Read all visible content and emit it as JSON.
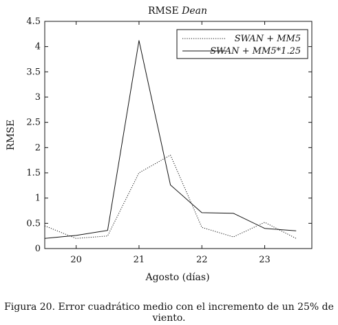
{
  "chart_data": {
    "type": "line",
    "title_prefix": "RMSE",
    "title_italic": "Dean",
    "xlabel": "Agosto (días)",
    "ylabel": "RMSE",
    "xlim": [
      19.5,
      23.75
    ],
    "ylim": [
      0,
      4.5
    ],
    "xticks": [
      20,
      21,
      22,
      23
    ],
    "yticks": [
      0,
      0.5,
      1,
      1.5,
      2,
      2.5,
      3,
      3.5,
      4,
      4.5
    ],
    "ytick_labels": [
      "0",
      "0.5",
      "1",
      "1.5",
      "2",
      "2.5",
      "3",
      "3.5",
      "4",
      "4.5"
    ],
    "legend_position": "top-right",
    "series": [
      {
        "name": "SWAN + MM5",
        "style": "dotted",
        "x": [
          19.5,
          20.0,
          20.5,
          21.0,
          21.5,
          22.0,
          22.5,
          23.0,
          23.5
        ],
        "y": [
          0.45,
          0.2,
          0.25,
          1.5,
          1.85,
          0.42,
          0.23,
          0.52,
          0.2
        ]
      },
      {
        "name": "SWAN + MM5*1.25",
        "style": "solid",
        "x": [
          19.5,
          20.0,
          20.5,
          21.0,
          21.5,
          22.0,
          22.5,
          23.0,
          23.5
        ],
        "y": [
          0.2,
          0.26,
          0.36,
          4.12,
          1.26,
          0.71,
          0.7,
          0.4,
          0.35
        ]
      }
    ]
  },
  "caption": "Figura 20. Error cuadrático medio con el incremento de un 25% de viento."
}
